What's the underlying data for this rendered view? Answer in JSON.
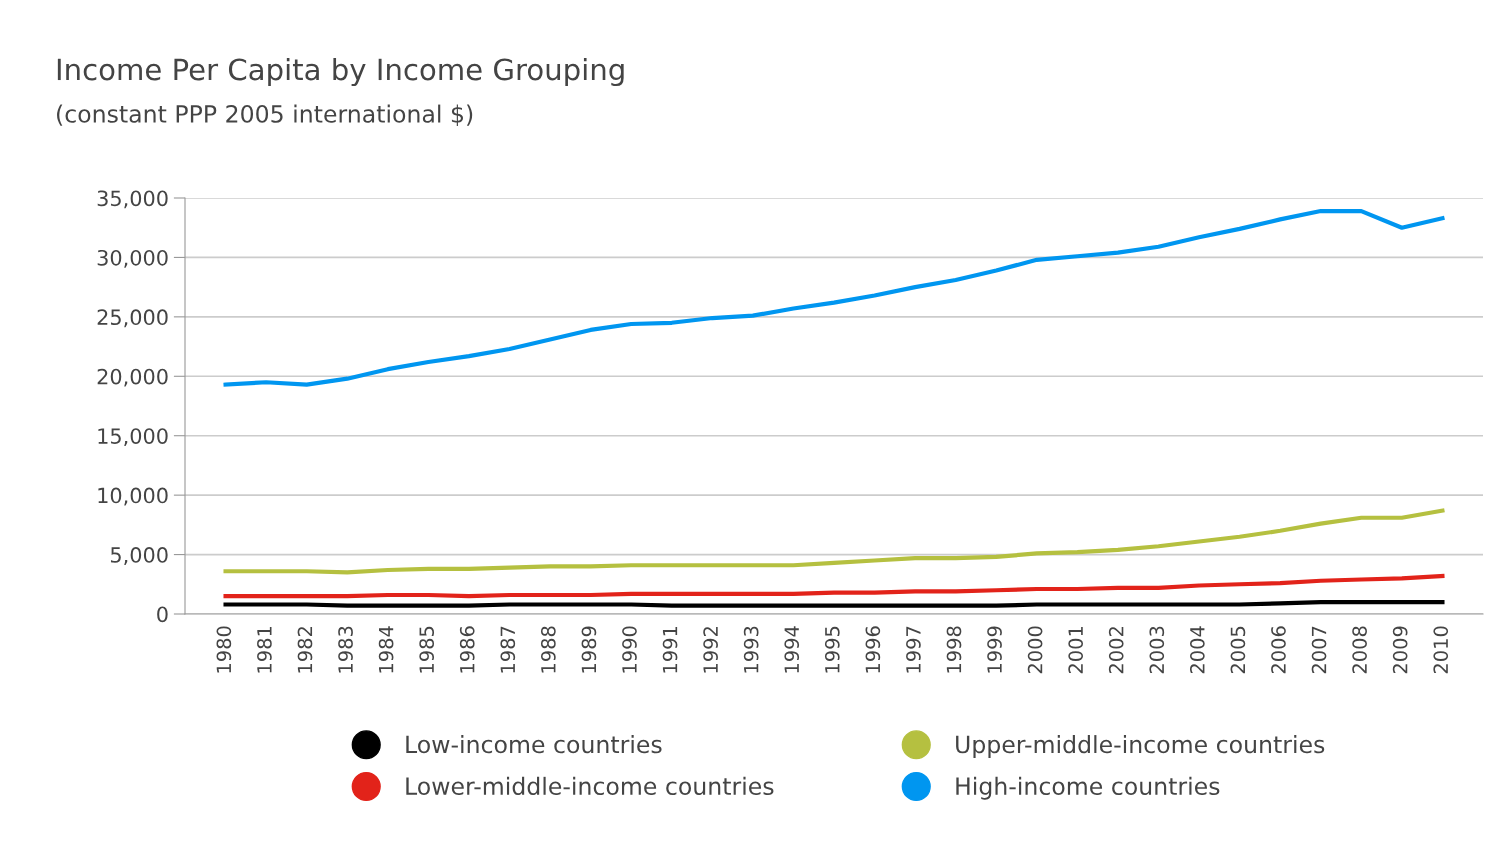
{
  "chart_data": {
    "type": "line",
    "title": "Income Per Capita by Income Grouping",
    "subtitle": "(constant PPP 2005 international $)",
    "categories": [
      "1980",
      "1981",
      "1982",
      "1983",
      "1984",
      "1985",
      "1986",
      "1987",
      "1988",
      "1989",
      "1990",
      "1991",
      "1992",
      "1993",
      "1994",
      "1995",
      "1996",
      "1997",
      "1998",
      "1999",
      "2000",
      "2001",
      "2002",
      "2003",
      "2004",
      "2005",
      "2006",
      "2007",
      "2008",
      "2009",
      "2010"
    ],
    "series": [
      {
        "name": "Low-income countries",
        "color": "#000000",
        "values": [
          800,
          800,
          800,
          700,
          700,
          700,
          700,
          800,
          800,
          800,
          800,
          700,
          700,
          700,
          700,
          700,
          700,
          700,
          700,
          700,
          800,
          800,
          800,
          800,
          800,
          800,
          900,
          1000,
          1000,
          1000,
          1000
        ]
      },
      {
        "name": "Lower-middle-income countries",
        "color": "#e2231a",
        "values": [
          1500,
          1500,
          1500,
          1500,
          1600,
          1600,
          1500,
          1600,
          1600,
          1600,
          1700,
          1700,
          1700,
          1700,
          1700,
          1800,
          1800,
          1900,
          1900,
          2000,
          2100,
          2100,
          2200,
          2200,
          2400,
          2500,
          2600,
          2800,
          2900,
          3000,
          3200
        ]
      },
      {
        "name": "Upper-middle-income countries",
        "color": "#b5c040",
        "values": [
          3600,
          3600,
          3600,
          3500,
          3700,
          3800,
          3800,
          3900,
          4000,
          4000,
          4100,
          4100,
          4100,
          4100,
          4100,
          4300,
          4500,
          4700,
          4700,
          4800,
          5100,
          5200,
          5400,
          5700,
          6100,
          6500,
          7000,
          7600,
          8100,
          8100,
          8700
        ]
      },
      {
        "name": "High-income countries",
        "color": "#0096f0",
        "values": [
          19300,
          19500,
          19300,
          19800,
          20600,
          21200,
          21700,
          22300,
          23100,
          23900,
          24400,
          24500,
          24900,
          25100,
          25700,
          26200,
          26800,
          27500,
          28100,
          28900,
          29800,
          30100,
          30400,
          30900,
          31700,
          32400,
          33200,
          33900,
          33900,
          32500,
          33300
        ]
      }
    ],
    "ylim": [
      0,
      35000
    ],
    "yticks": [
      {
        "value": 0,
        "label": "0"
      },
      {
        "value": 5000,
        "label": "5,000"
      },
      {
        "value": 10000,
        "label": "10,000"
      },
      {
        "value": 15000,
        "label": "15,000"
      },
      {
        "value": 20000,
        "label": "20,000"
      },
      {
        "value": 25000,
        "label": "25,000"
      },
      {
        "value": 30000,
        "label": "30,000"
      },
      {
        "value": 35000,
        "label": "35,000"
      }
    ],
    "grid": "y",
    "legend": "bottom",
    "marker": "none",
    "line_style": "solid"
  }
}
